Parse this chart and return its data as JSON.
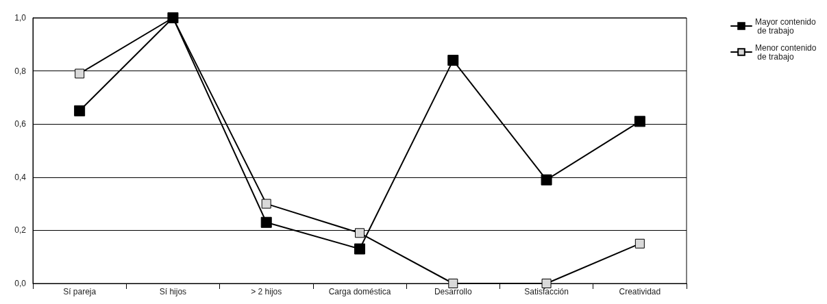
{
  "chart_data": {
    "type": "line",
    "categories": [
      "Sí pareja",
      "Sí hijos",
      "> 2 hijos",
      "Carga doméstica",
      "Desarrollo",
      "Satisfacción",
      "Creatividad"
    ],
    "series": [
      {
        "name": "Mayor contenido de trabajo",
        "color": "#000000",
        "values": [
          0.65,
          1.0,
          0.23,
          0.13,
          0.84,
          0.39,
          0.61
        ]
      },
      {
        "name": "Menor contenido de trabajo",
        "color": "#d9d9d9",
        "values": [
          0.79,
          1.0,
          0.3,
          0.19,
          0.0,
          0.0,
          0.15
        ]
      }
    ],
    "ylim": [
      0,
      1
    ],
    "yticks": [
      {
        "value": 0,
        "label": "0,0"
      },
      {
        "value": 0.2,
        "label": "0,2"
      },
      {
        "value": 0.4,
        "label": "0,4"
      },
      {
        "value": 0.6,
        "label": "0,6"
      },
      {
        "value": 0.8,
        "label": "0,8"
      },
      {
        "value": 1,
        "label": "1,0"
      }
    ],
    "grid": "y",
    "legend": "top right",
    "marker": "square",
    "line_style": "solid"
  }
}
